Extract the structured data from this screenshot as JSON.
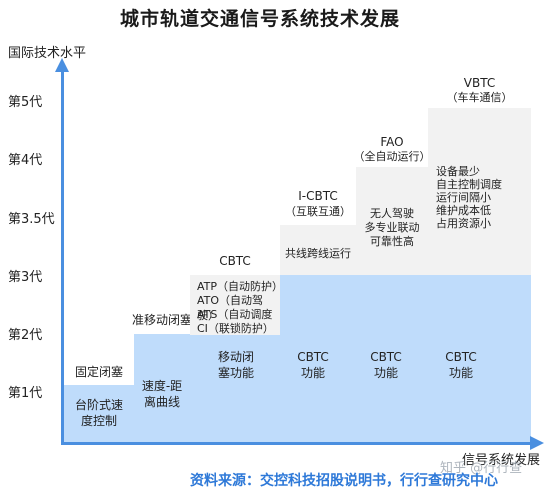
{
  "title": "城市轨道交通信号系统技术发展",
  "y_axis_label": "国际技术水平",
  "x_axis_label": "信号系统发展",
  "y_ticks": [
    "第5代",
    "第4代",
    "第3.5代",
    "第3代",
    "第2代",
    "第1代"
  ],
  "stages": [
    {
      "name": "固定闭塞",
      "blue_text": "台阶式速度控制"
    },
    {
      "name": "准移动闭塞",
      "blue_text": "速度-距离曲线"
    },
    {
      "name": "CBTC",
      "gray_lines": [
        "ATP（自动防护）",
        "ATO（自动驾驶）",
        "ATS（自动调度",
        "CI（联锁防护）"
      ],
      "blue_text": "移动闭塞功能"
    },
    {
      "name": "I-CBTC",
      "name_sub": "（互联互通）",
      "gray_text": "共线跨线运行",
      "blue_text": "CBTC功能"
    },
    {
      "name": "FAO",
      "name_sub": "（全自动运行）",
      "gray_lines": [
        "无人驾驶",
        "多专业联动",
        "可靠性高"
      ],
      "blue_text": "CBTC功能"
    },
    {
      "name": "VBTC",
      "name_sub": "（车车通信）",
      "gray_lines": [
        "设备最少",
        "自主控制调度",
        "运行间隔小",
        "维护成本低",
        "占用资源小"
      ],
      "blue_text": "CBTC功能"
    }
  ],
  "source": "资料来源：交控科技招股说明书，行行查研究中心",
  "watermark": "知乎 @行行查",
  "colors": {
    "blue_block": "#bfdcfb",
    "gray_block": "#f2f2f2",
    "axis": "#4a8fe0",
    "source_text": "#2e79d8"
  }
}
